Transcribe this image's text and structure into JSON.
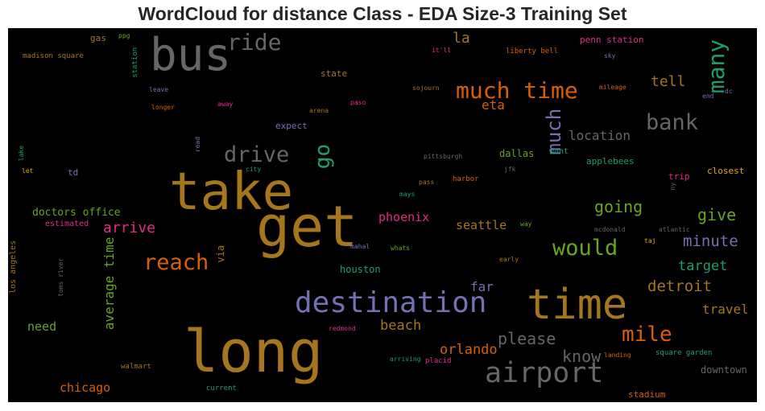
{
  "chart_data": {
    "type": "wordcloud",
    "title": "WordCloud for distance Class - EDA Size-3 Training Set",
    "palette": {
      "ochre": "#a6761d",
      "gray": "#666666",
      "purple": "#7570b3",
      "orange": "#d95f02",
      "green": "#66a61e",
      "teal": "#1b9e77",
      "magenta": "#e7298a",
      "yellow": "#e6ab02"
    },
    "words": [
      {
        "text": "long",
        "color": "ochre"
      },
      {
        "text": "get",
        "color": "ochre"
      },
      {
        "text": "take",
        "color": "ochre"
      },
      {
        "text": "time",
        "color": "ochre"
      },
      {
        "text": "bus",
        "color": "gray"
      },
      {
        "text": "destination",
        "color": "purple"
      },
      {
        "text": "airport",
        "color": "gray"
      },
      {
        "text": "much time",
        "color": "orange"
      },
      {
        "text": "many",
        "color": "teal"
      },
      {
        "text": "reach",
        "color": "orange"
      },
      {
        "text": "would",
        "color": "green"
      },
      {
        "text": "mile",
        "color": "orange"
      },
      {
        "text": "bank",
        "color": "gray"
      },
      {
        "text": "drive",
        "color": "gray"
      },
      {
        "text": "ride",
        "color": "gray"
      },
      {
        "text": "much",
        "color": "purple"
      },
      {
        "text": "go",
        "color": "teal"
      },
      {
        "text": "please",
        "color": "gray"
      },
      {
        "text": "know",
        "color": "gray"
      },
      {
        "text": "give",
        "color": "green"
      },
      {
        "text": "going",
        "color": "green"
      },
      {
        "text": "detroit",
        "color": "ochre"
      },
      {
        "text": "minute",
        "color": "purple"
      },
      {
        "text": "arrive",
        "color": "magenta"
      },
      {
        "text": "average time",
        "color": "green"
      },
      {
        "text": "tell",
        "color": "ochre"
      },
      {
        "text": "orlando",
        "color": "orange"
      },
      {
        "text": "beach",
        "color": "ochre"
      },
      {
        "text": "target",
        "color": "teal"
      },
      {
        "text": "location",
        "color": "gray"
      },
      {
        "text": "travel",
        "color": "ochre"
      },
      {
        "text": "chicago",
        "color": "orange"
      },
      {
        "text": "need",
        "color": "green"
      },
      {
        "text": "seattle",
        "color": "ochre"
      },
      {
        "text": "phoenix",
        "color": "magenta"
      },
      {
        "text": "eta",
        "color": "orange"
      },
      {
        "text": "la",
        "color": "ochre"
      },
      {
        "text": "far",
        "color": "purple"
      },
      {
        "text": "doctors office",
        "color": "green"
      },
      {
        "text": "houston",
        "color": "teal"
      },
      {
        "text": "dallas",
        "color": "green"
      },
      {
        "text": "via",
        "color": "ochre"
      },
      {
        "text": "downtown",
        "color": "gray"
      },
      {
        "text": "expect",
        "color": "purple"
      },
      {
        "text": "applebees",
        "color": "teal"
      },
      {
        "text": "penn station",
        "color": "magenta"
      },
      {
        "text": "closest",
        "color": "yellow"
      },
      {
        "text": "stadium",
        "color": "orange"
      },
      {
        "text": "trip",
        "color": "magenta"
      },
      {
        "text": "state",
        "color": "ochre"
      },
      {
        "text": "los angeles",
        "color": "ochre"
      },
      {
        "text": "want",
        "color": "teal"
      },
      {
        "text": "estimated",
        "color": "magenta"
      },
      {
        "text": "td",
        "color": "purple"
      },
      {
        "text": "gas",
        "color": "ochre"
      },
      {
        "text": "station",
        "color": "teal"
      },
      {
        "text": "liberty bell",
        "color": "orange"
      },
      {
        "text": "square garden",
        "color": "teal"
      },
      {
        "text": "madison square",
        "color": "ochre"
      },
      {
        "text": "walmart",
        "color": "ochre"
      },
      {
        "text": "current",
        "color": "teal"
      },
      {
        "text": "arriving",
        "color": "teal"
      },
      {
        "text": "placid",
        "color": "magenta"
      },
      {
        "text": "redmond",
        "color": "magenta"
      },
      {
        "text": "landing",
        "color": "orange"
      },
      {
        "text": "toms river",
        "color": "gray"
      },
      {
        "text": "pittsburgh",
        "color": "gray"
      },
      {
        "text": "harbor",
        "color": "orange"
      },
      {
        "text": "pass",
        "color": "ochre"
      },
      {
        "text": "mays",
        "color": "teal"
      },
      {
        "text": "jfk",
        "color": "gray"
      },
      {
        "text": "sojourn",
        "color": "ochre"
      },
      {
        "text": "paso",
        "color": "magenta"
      },
      {
        "text": "arena",
        "color": "ochre"
      },
      {
        "text": "away",
        "color": "magenta"
      },
      {
        "text": "longer",
        "color": "orange"
      },
      {
        "text": "leave",
        "color": "purple"
      },
      {
        "text": "ppg",
        "color": "green"
      },
      {
        "text": "it'll",
        "color": "magenta"
      },
      {
        "text": "sky",
        "color": "purple"
      },
      {
        "text": "mileage",
        "color": "orange"
      },
      {
        "text": "end",
        "color": "purple"
      },
      {
        "text": "dc",
        "color": "purple"
      },
      {
        "text": "lake",
        "color": "teal"
      },
      {
        "text": "let",
        "color": "yellow"
      },
      {
        "text": "city",
        "color": "teal"
      },
      {
        "text": "read",
        "color": "purple"
      },
      {
        "text": "ny",
        "color": "gray"
      },
      {
        "text": "mahal",
        "color": "purple"
      },
      {
        "text": "whats",
        "color": "green"
      },
      {
        "text": "early",
        "color": "ochre"
      },
      {
        "text": "way",
        "color": "green"
      },
      {
        "text": "mcdonald",
        "color": "gray"
      },
      {
        "text": "atlantic",
        "color": "gray"
      },
      {
        "text": "taj",
        "color": "yellow"
      }
    ]
  }
}
